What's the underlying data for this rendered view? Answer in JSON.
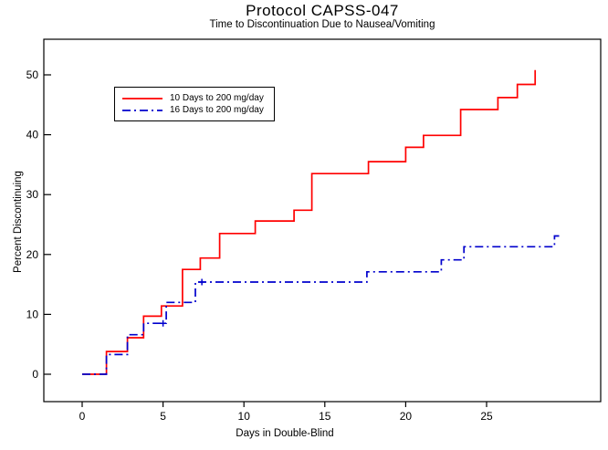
{
  "chart_data": {
    "type": "line",
    "variant": "kaplan-meier-step",
    "title": "Protocol CAPSS-047",
    "subtitle": "Time to Discontinuation Due to Nausea/Vomiting",
    "xlabel": "Days in Double-Blind",
    "ylabel": "Percent Discontinuing",
    "xticks": [
      0,
      5,
      10,
      15,
      20,
      25
    ],
    "yticks": [
      0,
      10,
      20,
      30,
      40,
      50
    ],
    "xlim": [
      0,
      25
    ],
    "ylim": [
      0,
      50
    ],
    "grid": false,
    "legend_position": "top-left",
    "axis_color": "#000000",
    "background": "#ffffff",
    "series": [
      {
        "name": "10 Days to 200 mg/day",
        "color": "#ff0000",
        "line_style": "solid",
        "start": [
          0,
          0
        ],
        "steps": [
          [
            1.5,
            3.8
          ],
          [
            2.8,
            6.1
          ],
          [
            3.8,
            9.7
          ],
          [
            4.9,
            11.4
          ],
          [
            6.2,
            17.5
          ],
          [
            7.3,
            19.4
          ],
          [
            8.5,
            23.5
          ],
          [
            10.7,
            25.6
          ],
          [
            13.1,
            27.4
          ],
          [
            14.2,
            33.5
          ],
          [
            17.7,
            35.5
          ],
          [
            20,
            37.9
          ],
          [
            21.1,
            39.9
          ],
          [
            23.4,
            44.2
          ],
          [
            25.7,
            46.2
          ],
          [
            26.9,
            48.4
          ],
          [
            28,
            50.8
          ]
        ],
        "end_day": 28
      },
      {
        "name": "16 Days to 200 mg/day",
        "color": "#0000cd",
        "line_style": "dash-dot",
        "start": [
          0,
          0
        ],
        "steps": [
          [
            1.5,
            3.3
          ],
          [
            2.8,
            6.6
          ],
          [
            3.8,
            8.5
          ],
          [
            5.2,
            12.0
          ],
          [
            7.0,
            15.4
          ],
          [
            17.6,
            17.1
          ],
          [
            22.2,
            19.1
          ],
          [
            23.6,
            21.3
          ],
          [
            29.2,
            23.1
          ]
        ],
        "end_day": 29.6,
        "censor_marks": [
          [
            5.0,
            8.5
          ],
          [
            7.4,
            15.4
          ]
        ]
      }
    ]
  }
}
